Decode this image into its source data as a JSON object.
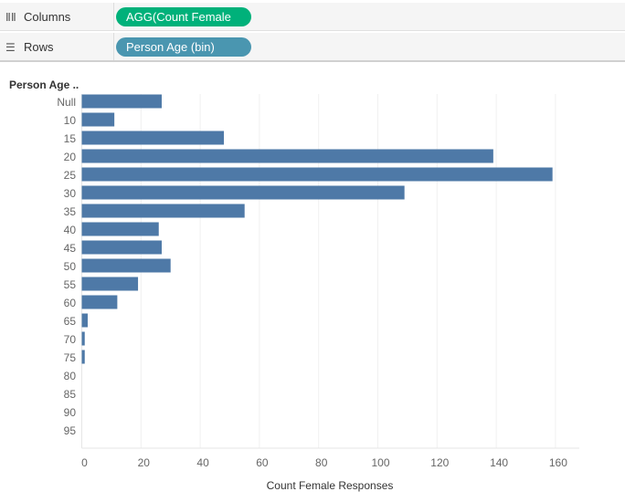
{
  "shelves": {
    "columns_label": "Columns",
    "columns_pill": "AGG(Count Female R..",
    "rows_label": "Rows",
    "rows_pill": "Person Age (bin)"
  },
  "colors": {
    "bar": "#4e79a7",
    "columns_pill": "#00b17a",
    "rows_pill": "#4a96b0",
    "grid": "#f0f0f0"
  },
  "chart_data": {
    "type": "bar",
    "orientation": "horizontal",
    "row_header": "Person Age ..",
    "categories": [
      "Null",
      "10",
      "15",
      "20",
      "25",
      "30",
      "35",
      "40",
      "45",
      "50",
      "55",
      "60",
      "65",
      "70",
      "75",
      "80",
      "85",
      "90",
      "95"
    ],
    "values": [
      27,
      11,
      48,
      139,
      159,
      109,
      55,
      26,
      27,
      30,
      19,
      12,
      2,
      1,
      1,
      0,
      0,
      0,
      0
    ],
    "xlabel": "Count Female Responses",
    "xticks": [
      0,
      20,
      40,
      60,
      80,
      100,
      120,
      140,
      160
    ],
    "xlim": [
      0,
      167
    ],
    "grid": true
  }
}
